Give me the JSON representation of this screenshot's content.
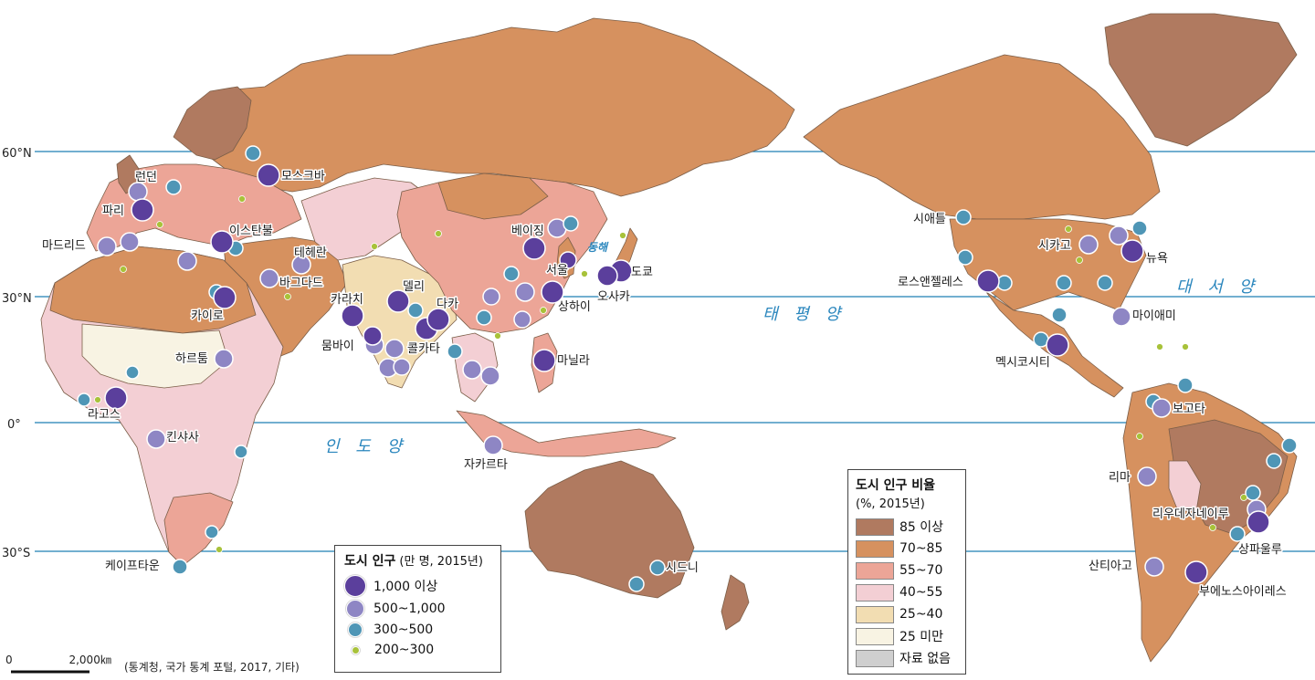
{
  "colors": {
    "ocean": "#ffffff",
    "lat_line": "#1f7fb5",
    "urban_85_plus": "#b07a60",
    "urban_70_85": "#d6915f",
    "urban_55_70": "#eca597",
    "urban_40_55": "#f3cfd4",
    "urban_25_40": "#f2ddb2",
    "urban_under_25": "#f8f3e3",
    "no_data": "#cfcfcf",
    "city_1000_plus": "#5b3f9c",
    "city_500_1000": "#8e86c4",
    "city_300_500": "#4f96b6",
    "city_200_300": "#a8c23a"
  },
  "latitudes": [
    "60°N",
    "30°N",
    "0°",
    "30°S"
  ],
  "oceans": {
    "pacific": "태 평 양",
    "indian": "인 도 양",
    "atlantic": "대 서 양",
    "east_sea": "동해"
  },
  "city_labels": [
    "모스크바",
    "런던",
    "파리",
    "마드리드",
    "이스탄불",
    "테헤란",
    "바그다드",
    "카이로",
    "하르툼",
    "라고스",
    "킨샤사",
    "케이프타운",
    "카라치",
    "델리",
    "뭄바이",
    "콜카타",
    "다카",
    "베이징",
    "서울",
    "상하이",
    "도쿄",
    "오사카",
    "마닐라",
    "자카르타",
    "시드니",
    "시애틀",
    "시카고",
    "뉴욕",
    "로스앤젤레스",
    "마이애미",
    "멕시코시티",
    "보고타",
    "리마",
    "리우데자네이루",
    "상파울루",
    "산티아고",
    "부에노스아이레스"
  ],
  "legend_population": {
    "title": "도시 인구",
    "unit": "(만 명, 2015년)",
    "items": [
      "1,000 이상",
      "500~1,000",
      "300~500",
      "200~300"
    ]
  },
  "legend_urban": {
    "title": "도시 인구 비율",
    "unit": "(%, 2015년)",
    "items": [
      "85 이상",
      "70~85",
      "55~70",
      "40~55",
      "25~40",
      "25 미만",
      "자료 없음"
    ]
  },
  "scale": {
    "zero": "0",
    "distance": "2,000㎞"
  },
  "source": "(통계청, 국가 통계 포털, 2017, 기타)"
}
